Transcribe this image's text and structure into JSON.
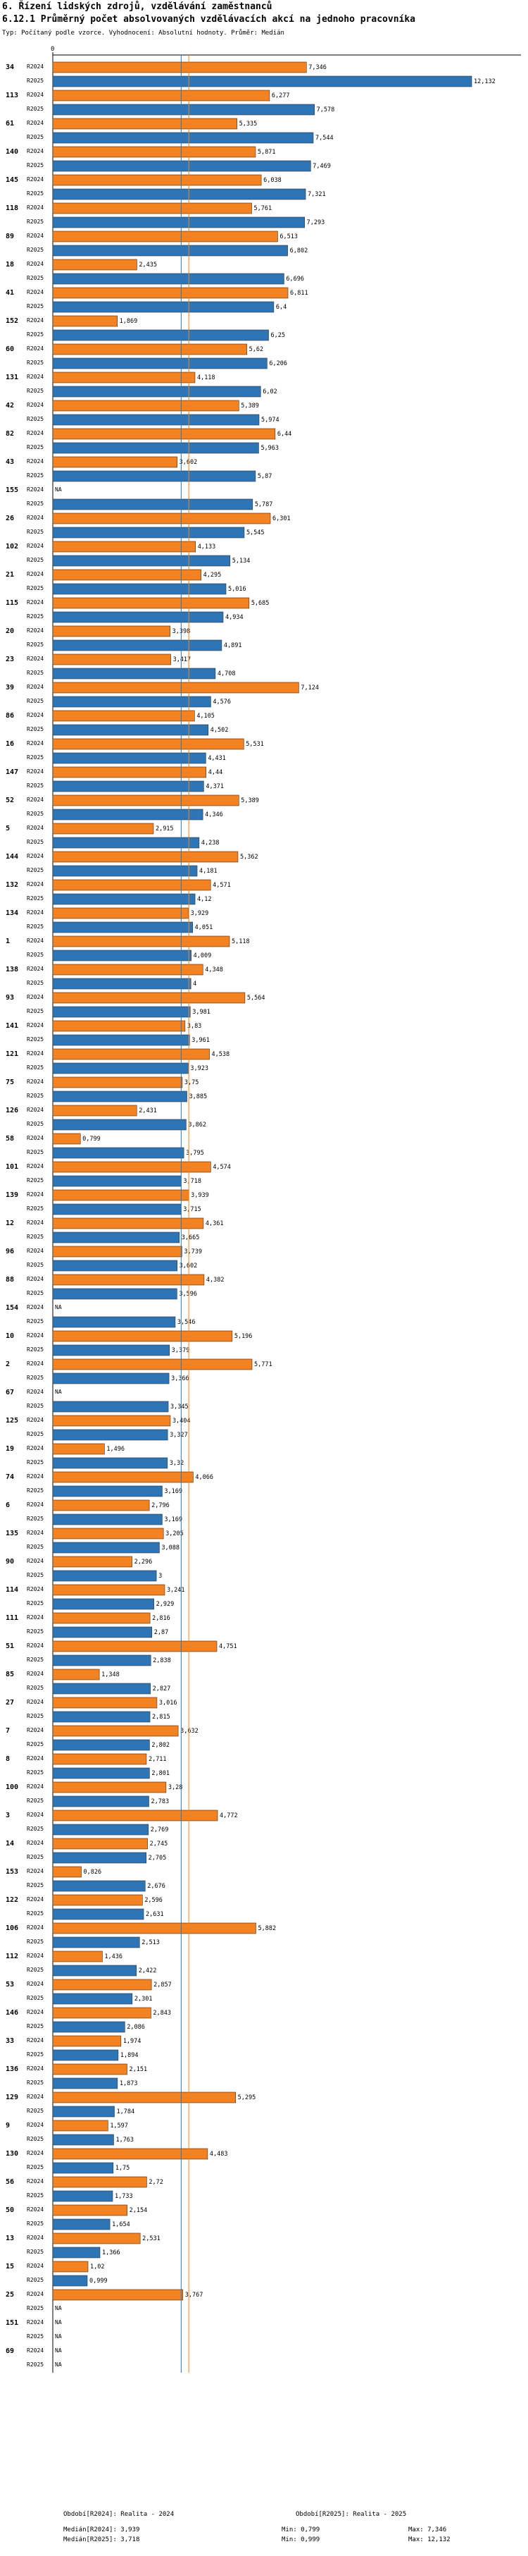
{
  "header": {
    "title": "6. Řízení lidských zdrojů, vzdělávání zaměstnanců",
    "subtitle": "6.12.1 Průměrný počet absolvovaných vzdělávacích akcí na jednoho pracovníka",
    "note": "Typ: Počítaný podle vzorce. Vyhodnocení: Absolutní hodnoty. Průměr: Medián"
  },
  "colors": {
    "r2024": "#f58220",
    "r2025": "#2e75b6",
    "median2024": "#f58220",
    "median2025": "#2e75b6",
    "grid": "#bbbbbb"
  },
  "chart_data": {
    "type": "bar",
    "orientation": "horizontal",
    "series_names": [
      "R2024",
      "R2025"
    ],
    "xlim": [
      0,
      12.132
    ],
    "x_tick_label": "0",
    "missing_label": "NA",
    "categories": [
      "34",
      "113",
      "61",
      "140",
      "145",
      "118",
      "89",
      "18",
      "41",
      "152",
      "60",
      "131",
      "42",
      "82",
      "43",
      "155",
      "26",
      "102",
      "21",
      "115",
      "20",
      "23",
      "39",
      "86",
      "16",
      "147",
      "52",
      "5",
      "144",
      "132",
      "134",
      "1",
      "138",
      "93",
      "141",
      "121",
      "75",
      "126",
      "58",
      "101",
      "139",
      "12",
      "96",
      "88",
      "154",
      "10",
      "2",
      "67",
      "125",
      "19",
      "74",
      "6",
      "135",
      "90",
      "114",
      "111",
      "51",
      "85",
      "27",
      "7",
      "8",
      "100",
      "3",
      "14",
      "153",
      "122",
      "106",
      "112",
      "53",
      "146",
      "33",
      "136",
      "129",
      "9",
      "130",
      "56",
      "50",
      "13",
      "15",
      "25",
      "151",
      "69"
    ],
    "series": [
      {
        "name": "R2024",
        "values": [
          7.346,
          6.277,
          5.335,
          5.871,
          6.038,
          5.761,
          6.513,
          2.435,
          6.811,
          1.869,
          5.62,
          4.118,
          5.389,
          6.44,
          3.602,
          null,
          6.301,
          4.133,
          4.295,
          5.685,
          3.398,
          3.417,
          7.124,
          4.105,
          5.531,
          4.44,
          5.389,
          2.915,
          5.362,
          4.571,
          3.929,
          5.118,
          4.348,
          5.564,
          3.83,
          4.538,
          3.75,
          2.431,
          0.799,
          4.574,
          3.939,
          4.361,
          3.739,
          4.382,
          null,
          5.196,
          5.771,
          null,
          3.404,
          1.496,
          4.066,
          2.796,
          3.205,
          2.296,
          3.241,
          2.816,
          4.751,
          1.348,
          3.016,
          3.632,
          2.711,
          3.28,
          4.772,
          2.745,
          0.826,
          2.596,
          5.882,
          1.436,
          2.857,
          2.843,
          1.974,
          2.151,
          5.295,
          1.597,
          4.483,
          2.72,
          2.154,
          2.531,
          1.02,
          3.767,
          null,
          null
        ],
        "labels": [
          "7,346",
          "6,277",
          "5,335",
          "5,871",
          "6,038",
          "5,761",
          "6,513",
          "2,435",
          "6,811",
          "1,869",
          "5,62",
          "4,118",
          "5,389",
          "6,44",
          "3,602",
          "NA",
          "6,301",
          "4,133",
          "4,295",
          "5,685",
          "3,398",
          "3,417",
          "7,124",
          "4,105",
          "5,531",
          "4,44",
          "5,389",
          "2,915",
          "5,362",
          "4,571",
          "3,929",
          "5,118",
          "4,348",
          "5,564",
          "3,83",
          "4,538",
          "3,75",
          "2,431",
          "0,799",
          "4,574",
          "3,939",
          "4,361",
          "3,739",
          "4,382",
          "NA",
          "5,196",
          "5,771",
          "NA",
          "3,404",
          "1,496",
          "4,066",
          "2,796",
          "3,205",
          "2,296",
          "3,241",
          "2,816",
          "4,751",
          "1,348",
          "3,016",
          "3,632",
          "2,711",
          "3,28",
          "4,772",
          "2,745",
          "0,826",
          "2,596",
          "5,882",
          "1,436",
          "2,857",
          "2,843",
          "1,974",
          "2,151",
          "5,295",
          "1,597",
          "4,483",
          "2,72",
          "2,154",
          "2,531",
          "1,02",
          "3,767",
          "NA",
          "NA"
        ]
      },
      {
        "name": "R2025",
        "values": [
          12.132,
          7.578,
          7.544,
          7.469,
          7.321,
          7.293,
          6.802,
          6.696,
          6.4,
          6.25,
          6.206,
          6.02,
          5.974,
          5.963,
          5.87,
          5.787,
          5.545,
          5.134,
          5.016,
          4.934,
          4.891,
          4.708,
          4.576,
          4.502,
          4.431,
          4.371,
          4.346,
          4.238,
          4.181,
          4.12,
          4.051,
          4.009,
          4,
          3.981,
          3.961,
          3.923,
          3.885,
          3.862,
          3.795,
          3.718,
          3.715,
          3.665,
          3.602,
          3.596,
          3.546,
          3.379,
          3.366,
          3.345,
          3.327,
          3.32,
          3.169,
          3.169,
          3.088,
          3,
          2.929,
          2.87,
          2.838,
          2.827,
          2.815,
          2.802,
          2.801,
          2.783,
          2.769,
          2.705,
          2.676,
          2.631,
          2.513,
          2.422,
          2.301,
          2.086,
          1.894,
          1.873,
          1.784,
          1.763,
          1.75,
          1.733,
          1.654,
          1.366,
          0.999,
          null,
          null,
          null
        ],
        "labels": [
          "12,132",
          "7,578",
          "7,544",
          "7,469",
          "7,321",
          "7,293",
          "6,802",
          "6,696",
          "6,4",
          "6,25",
          "6,206",
          "6,02",
          "5,974",
          "5,963",
          "5,87",
          "5,787",
          "5,545",
          "5,134",
          "5,016",
          "4,934",
          "4,891",
          "4,708",
          "4,576",
          "4,502",
          "4,431",
          "4,371",
          "4,346",
          "4,238",
          "4,181",
          "4,12",
          "4,051",
          "4,009",
          "4",
          "3,981",
          "3,961",
          "3,923",
          "3,885",
          "3,862",
          "3,795",
          "3,718",
          "3,715",
          "3,665",
          "3,602",
          "3,596",
          "3,546",
          "3,379",
          "3,366",
          "3,345",
          "3,327",
          "3,32",
          "3,169",
          "3,169",
          "3,088",
          "3",
          "2,929",
          "2,87",
          "2,838",
          "2,827",
          "2,815",
          "2,802",
          "2,801",
          "2,783",
          "2,769",
          "2,705",
          "2,676",
          "2,631",
          "2,513",
          "2,422",
          "2,301",
          "2,086",
          "1,894",
          "1,873",
          "1,784",
          "1,763",
          "1,75",
          "1,733",
          "1,654",
          "1,366",
          "0,999",
          "NA",
          "NA",
          "NA"
        ]
      }
    ],
    "median_lines": [
      3.939,
      3.718
    ]
  },
  "legend": {
    "left_title": "Období[R2024]: Realita - 2024",
    "right_title": "Období[R2025]: Realita - 2025",
    "rows": [
      {
        "median": "Medián[R2024]: 3,939",
        "min": "Min: 0,799",
        "max": "Max: 7,346"
      },
      {
        "median": "Medián[R2025]: 3,718",
        "min": "Min: 0,999",
        "max": "Max: 12,132"
      }
    ]
  }
}
